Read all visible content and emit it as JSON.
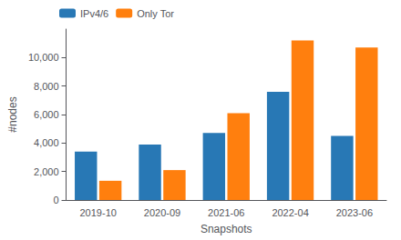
{
  "chart_data": {
    "type": "bar",
    "xlabel": "Snapshots",
    "ylabel": "#nodes",
    "categories": [
      "2019-10",
      "2020-09",
      "2021-06",
      "2022-04",
      "2023-06"
    ],
    "series": [
      {
        "name": "IPv4/6",
        "color": "#2878b5",
        "values": [
          3400,
          3900,
          4700,
          7600,
          4500
        ]
      },
      {
        "name": "Only Tor",
        "color": "#ff7f0e",
        "values": [
          1350,
          2100,
          6100,
          11200,
          10700
        ]
      }
    ],
    "ylim": [
      0,
      12000
    ],
    "yticks": [
      0,
      {
        "value": 2000,
        "label": "2,000"
      },
      {
        "value": 4000,
        "label": "4,000"
      },
      {
        "value": 6000,
        "label": "6,000"
      },
      {
        "value": 8000,
        "label": "8,000"
      },
      {
        "value": 10000,
        "label": "10,000"
      }
    ],
    "grid": false,
    "legend": "upper left"
  }
}
